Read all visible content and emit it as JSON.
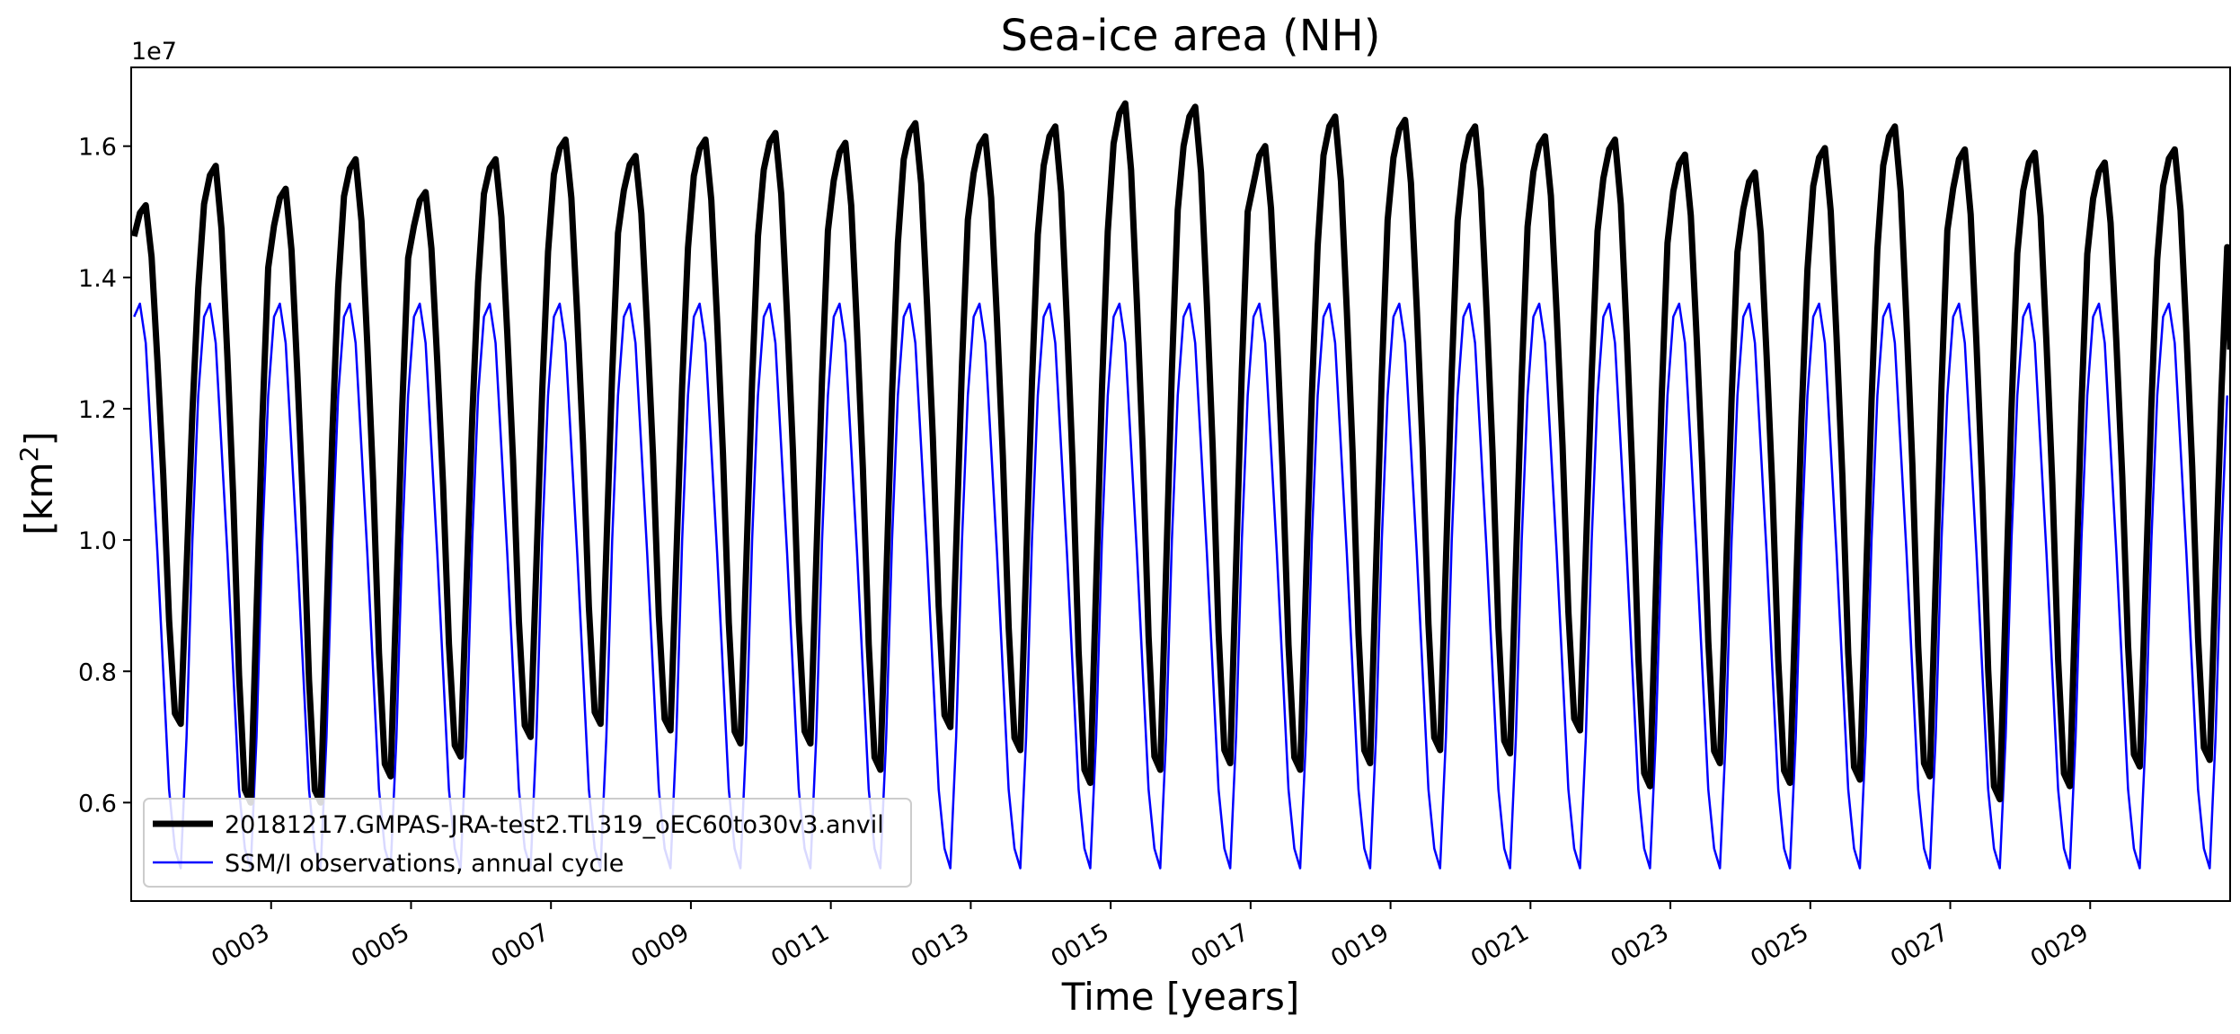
{
  "chart_data": {
    "type": "line",
    "title": "Sea-ice area (NH)",
    "xlabel": "Time [years]",
    "ylabel_base": "[km",
    "ylabel_sup": "2",
    "ylabel_end": "]",
    "y_offset_label": "1e7",
    "xlim": [
      1,
      31
    ],
    "ylim": [
      0.45,
      1.72
    ],
    "yticks": [
      0.6,
      0.8,
      1.0,
      1.2,
      1.4,
      1.6
    ],
    "ytick_labels": [
      "0.6",
      "0.8",
      "1.0",
      "1.2",
      "1.4",
      "1.6"
    ],
    "xticks": [
      3,
      5,
      7,
      9,
      11,
      13,
      15,
      17,
      19,
      21,
      23,
      25,
      27,
      29
    ],
    "xtick_labels": [
      "0003",
      "0005",
      "0007",
      "0009",
      "0011",
      "0013",
      "0015",
      "0017",
      "0019",
      "0021",
      "0023",
      "0025",
      "0027",
      "0029"
    ],
    "legend_position": "lower-left",
    "series": [
      {
        "name": "20181217.GMPAS-JRA-test2.TL319_oEC60to30v3.anvil",
        "color": "#000000",
        "kind": "model",
        "annual_max": [
          1.51,
          1.57,
          1.535,
          1.58,
          1.53,
          1.58,
          1.61,
          1.585,
          1.61,
          1.62,
          1.605,
          1.635,
          1.615,
          1.63,
          1.665,
          1.66,
          1.6,
          1.645,
          1.64,
          1.63,
          1.615,
          1.61,
          1.587,
          1.56,
          1.597,
          1.63,
          1.595,
          1.59,
          1.575,
          1.595
        ],
        "annual_min": [
          0.72,
          0.6,
          0.6,
          0.64,
          0.67,
          0.7,
          0.72,
          0.71,
          0.69,
          0.69,
          0.65,
          0.715,
          0.68,
          0.63,
          0.65,
          0.66,
          0.65,
          0.66,
          0.68,
          0.675,
          0.71,
          0.625,
          0.66,
          0.63,
          0.635,
          0.64,
          0.605,
          0.625,
          0.655,
          0.665
        ],
        "end_value": 1.29
      },
      {
        "name": "SSM/I observations, annual cycle",
        "color": "#0000ff",
        "kind": "climatology",
        "monthly": [
          1.34,
          1.36,
          1.3,
          1.14,
          0.98,
          0.8,
          0.62,
          0.53,
          0.5,
          0.7,
          1.0,
          1.22
        ]
      }
    ]
  }
}
